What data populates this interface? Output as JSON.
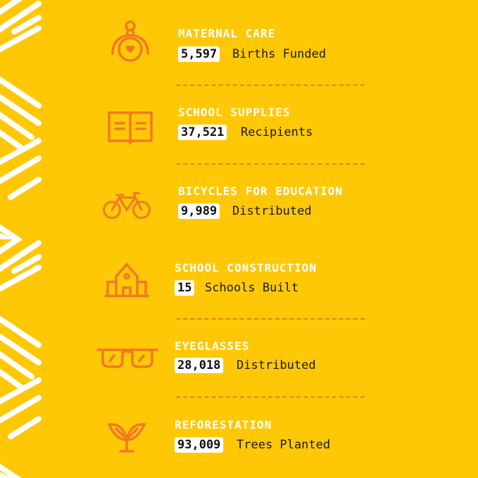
{
  "colors": {
    "background": "#FFC806",
    "accent": "#F07A24",
    "title": "#FFFFFF"
  },
  "items": [
    {
      "icon": "mother-heart-icon",
      "title": "MATERNAL CARE",
      "value": "5,597",
      "unit": "Births Funded"
    },
    {
      "icon": "open-book-icon",
      "title": "SCHOOL SUPPLIES",
      "value": "37,521",
      "unit": "Recipients"
    },
    {
      "icon": "bicycle-icon",
      "title": "BICYCLES FOR EDUCATION",
      "value": "9,989",
      "unit": "Distributed"
    },
    {
      "icon": "school-house-icon",
      "title": "SCHOOL CONSTRUCTION",
      "value": "15",
      "unit": "Schools Built"
    },
    {
      "icon": "eyeglasses-icon",
      "title": "EYEGLASSES",
      "value": "28,018",
      "unit": "Distributed"
    },
    {
      "icon": "sprout-icon",
      "title": "REFORESTATION",
      "value": "93,009",
      "unit": "Trees Planted"
    }
  ]
}
